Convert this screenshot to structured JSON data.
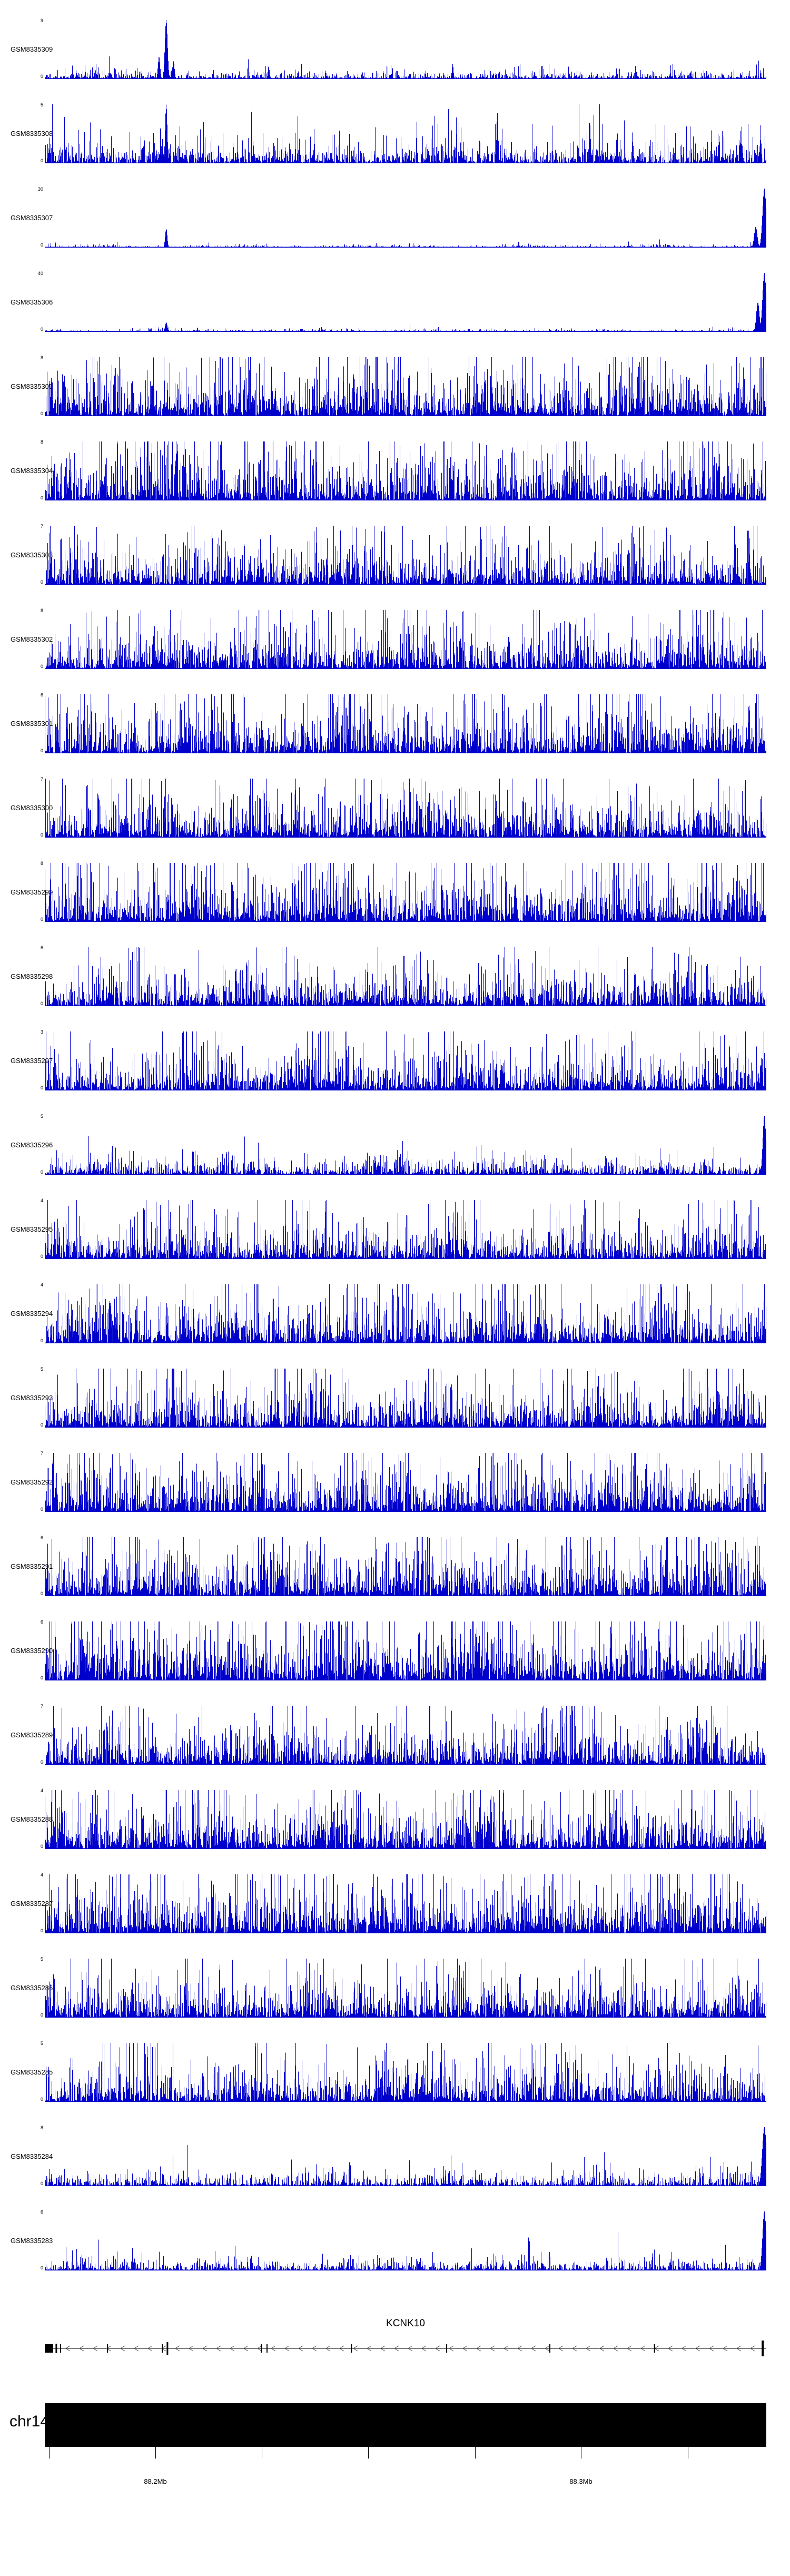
{
  "chart_data": {
    "type": "area",
    "title": "",
    "description": "Genome browser coverage signal tracks over chr14 near gene KCNK10",
    "color": "#0000cc",
    "ymin": 0,
    "chromosome": "chr14",
    "x_axis": {
      "unit": "Mb",
      "ticks": [
        {
          "pos": 0.006,
          "label": ""
        },
        {
          "pos": 0.153,
          "label": "88.2Mb"
        },
        {
          "pos": 0.301,
          "label": ""
        },
        {
          "pos": 0.448,
          "label": ""
        },
        {
          "pos": 0.596,
          "label": ""
        },
        {
          "pos": 0.743,
          "label": "88.3Mb"
        },
        {
          "pos": 0.891,
          "label": ""
        }
      ]
    },
    "gene_track": {
      "gene": "KCNK10",
      "strand": "-",
      "start_box": {
        "pos": 0.0,
        "w": 16,
        "h": 16
      },
      "exons": [
        {
          "pos": 0.016,
          "w": 3,
          "h": 18
        },
        {
          "pos": 0.022,
          "w": 2,
          "h": 16
        },
        {
          "pos": 0.087,
          "w": 2,
          "h": 16
        },
        {
          "pos": 0.163,
          "w": 2,
          "h": 16
        },
        {
          "pos": 0.17,
          "w": 3,
          "h": 24
        },
        {
          "pos": 0.3,
          "w": 2,
          "h": 16
        },
        {
          "pos": 0.308,
          "w": 2,
          "h": 16
        },
        {
          "pos": 0.425,
          "w": 2,
          "h": 16
        },
        {
          "pos": 0.557,
          "w": 2,
          "h": 16
        },
        {
          "pos": 0.7,
          "w": 2,
          "h": 16
        },
        {
          "pos": 0.845,
          "w": 2,
          "h": 16
        },
        {
          "pos": 0.995,
          "w": 4,
          "h": 30
        }
      ]
    },
    "tracks": [
      {
        "name": "GSM8335309",
        "ymax": 9,
        "base": 0.06,
        "seed": 1,
        "spikes": [
          {
            "pos": 0.168,
            "h": 1.0,
            "w": 2.5
          },
          {
            "pos": 0.158,
            "h": 0.38,
            "w": 2
          },
          {
            "pos": 0.178,
            "h": 0.3,
            "w": 2
          },
          {
            "pos": 0.31,
            "h": 0.22,
            "w": 1.5
          },
          {
            "pos": 0.565,
            "h": 0.25,
            "w": 1.5
          }
        ]
      },
      {
        "name": "GSM8335308",
        "ymax": 5,
        "base": 0.17,
        "seed": 2,
        "spikes": [
          {
            "pos": 0.168,
            "h": 1.0,
            "w": 2
          },
          {
            "pos": 0.627,
            "h": 0.85,
            "w": 1.6
          },
          {
            "pos": 0.755,
            "h": 0.7,
            "w": 1.6
          }
        ]
      },
      {
        "name": "GSM8335307",
        "ymax": 30,
        "base": 0.018,
        "seed": 3,
        "spikes": [
          {
            "pos": 0.168,
            "h": 0.32,
            "w": 2
          },
          {
            "pos": 0.997,
            "h": 1.0,
            "w": 3.5
          },
          {
            "pos": 0.985,
            "h": 0.35,
            "w": 3
          }
        ]
      },
      {
        "name": "GSM8335306",
        "ymax": 40,
        "base": 0.018,
        "seed": 4,
        "spikes": [
          {
            "pos": 0.168,
            "h": 0.16,
            "w": 2.2
          },
          {
            "pos": 0.997,
            "h": 1.0,
            "w": 3.5
          },
          {
            "pos": 0.988,
            "h": 0.5,
            "w": 3
          }
        ]
      },
      {
        "name": "GSM8335305",
        "ymax": 8,
        "base": 0.38,
        "seed": 5,
        "spikes": []
      },
      {
        "name": "GSM8335304",
        "ymax": 8,
        "base": 0.4,
        "seed": 6,
        "spikes": []
      },
      {
        "name": "GSM8335303",
        "ymax": 7,
        "base": 0.3,
        "seed": 7,
        "spikes": []
      },
      {
        "name": "GSM8335302",
        "ymax": 8,
        "base": 0.32,
        "seed": 8,
        "spikes": []
      },
      {
        "name": "GSM8335301",
        "ymax": 6,
        "base": 0.35,
        "seed": 9,
        "spikes": []
      },
      {
        "name": "GSM8335300",
        "ymax": 7,
        "base": 0.33,
        "seed": 10,
        "spikes": []
      },
      {
        "name": "GSM8335299",
        "ymax": 8,
        "base": 0.38,
        "seed": 11,
        "spikes": []
      },
      {
        "name": "GSM8335298",
        "ymax": 6,
        "base": 0.28,
        "seed": 12,
        "spikes": []
      },
      {
        "name": "GSM8335297",
        "ymax": 3,
        "base": 0.3,
        "seed": 13,
        "spikes": []
      },
      {
        "name": "GSM8335296",
        "ymax": 5,
        "base": 0.12,
        "seed": 14,
        "spikes": [
          {
            "pos": 0.997,
            "h": 1.0,
            "w": 3
          }
        ]
      },
      {
        "name": "GSM8335295",
        "ymax": 4,
        "base": 0.3,
        "seed": 15,
        "spikes": []
      },
      {
        "name": "GSM8335294",
        "ymax": 4,
        "base": 0.34,
        "seed": 16,
        "spikes": []
      },
      {
        "name": "GSM8335293",
        "ymax": 5,
        "base": 0.32,
        "seed": 17,
        "spikes": []
      },
      {
        "name": "GSM8335292",
        "ymax": 7,
        "base": 0.36,
        "seed": 18,
        "spikes": []
      },
      {
        "name": "GSM8335291",
        "ymax": 6,
        "base": 0.38,
        "seed": 19,
        "spikes": []
      },
      {
        "name": "GSM8335290",
        "ymax": 6,
        "base": 0.42,
        "seed": 20,
        "spikes": []
      },
      {
        "name": "GSM8335289",
        "ymax": 7,
        "base": 0.32,
        "seed": 21,
        "spikes": []
      },
      {
        "name": "GSM8335288",
        "ymax": 4,
        "base": 0.36,
        "seed": 22,
        "spikes": []
      },
      {
        "name": "GSM8335287",
        "ymax": 4,
        "base": 0.44,
        "seed": 23,
        "spikes": []
      },
      {
        "name": "GSM8335286",
        "ymax": 5,
        "base": 0.3,
        "seed": 24,
        "spikes": []
      },
      {
        "name": "GSM8335285",
        "ymax": 5,
        "base": 0.3,
        "seed": 25,
        "spikes": []
      },
      {
        "name": "GSM8335284",
        "ymax": 8,
        "base": 0.1,
        "seed": 26,
        "spikes": [
          {
            "pos": 0.997,
            "h": 1.0,
            "w": 4
          },
          {
            "pos": 0.56,
            "h": 0.3,
            "w": 1.5
          }
        ]
      },
      {
        "name": "GSM8335283",
        "ymax": 6,
        "base": 0.08,
        "seed": 27,
        "spikes": [
          {
            "pos": 0.997,
            "h": 1.0,
            "w": 3.5
          }
        ]
      }
    ]
  }
}
